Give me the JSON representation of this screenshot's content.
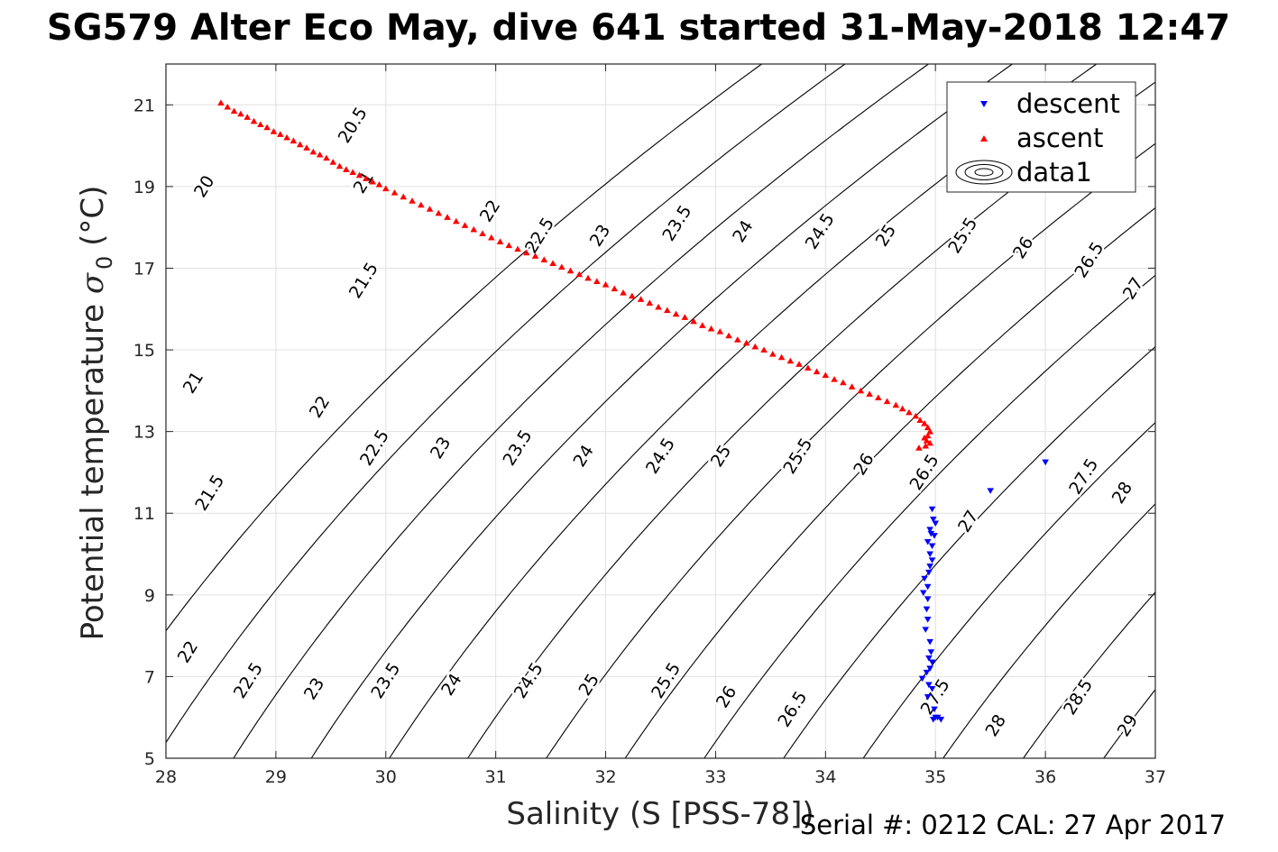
{
  "title": "SG579 Alter Eco May, dive 641 started 31-May-2018 12:47",
  "footer": "Serial #: 0212  CAL: 27 Apr 2017",
  "chart_data": {
    "type": "scatter",
    "xlabel": "Salinity (S [PSS-78])",
    "ylabel": "Potential temperature σ 0 (°C)",
    "ylabel_main": "Potential temperature ",
    "ylabel_sigma": "σ",
    "ylabel_sub": "0",
    "ylabel_unit": " (°C)",
    "xlim": [
      28,
      37
    ],
    "ylim": [
      5,
      22
    ],
    "xticks": [
      "28",
      "29",
      "30",
      "31",
      "32",
      "33",
      "34",
      "35",
      "36",
      "37"
    ],
    "yticks": [
      "5",
      "7",
      "9",
      "11",
      "13",
      "15",
      "17",
      "19",
      "21"
    ],
    "grid": true,
    "legend_position": "top-right",
    "legend": [
      "descent",
      "ascent",
      "data1"
    ],
    "colors": {
      "descent": "#0000ff",
      "ascent": "#ff0000",
      "contour": "#000000",
      "grid": "#e0e0e0"
    },
    "contours": {
      "levels": [
        "20",
        "20.5",
        "21",
        "21.5",
        "22",
        "22.5",
        "23",
        "23.5",
        "24",
        "24.5",
        "25",
        "25.5",
        "26",
        "26.5",
        "27",
        "27.5",
        "28",
        "28.5",
        "29"
      ],
      "labels": [
        {
          "text": "20.5",
          "s": 29.7,
          "t": 20.5
        },
        {
          "text": "20",
          "s": 28.35,
          "t": 19.0
        },
        {
          "text": "21",
          "s": 29.8,
          "t": 19.1
        },
        {
          "text": "21.5",
          "s": 29.8,
          "t": 16.7
        },
        {
          "text": "22",
          "s": 30.95,
          "t": 18.4
        },
        {
          "text": "22.5",
          "s": 31.4,
          "t": 17.8
        },
        {
          "text": "23",
          "s": 31.95,
          "t": 17.8
        },
        {
          "text": "23.5",
          "s": 32.65,
          "t": 18.1
        },
        {
          "text": "24",
          "s": 33.25,
          "t": 17.9
        },
        {
          "text": "24.5",
          "s": 33.95,
          "t": 17.9
        },
        {
          "text": "25",
          "s": 34.55,
          "t": 17.8
        },
        {
          "text": "25.5",
          "s": 35.25,
          "t": 17.8
        },
        {
          "text": "26",
          "s": 35.8,
          "t": 17.5
        },
        {
          "text": "26.5",
          "s": 36.4,
          "t": 17.2
        },
        {
          "text": "27",
          "s": 36.8,
          "t": 16.5
        },
        {
          "text": "21",
          "s": 28.25,
          "t": 14.2
        },
        {
          "text": "22",
          "s": 29.4,
          "t": 13.6
        },
        {
          "text": "22.5",
          "s": 29.9,
          "t": 12.6
        },
        {
          "text": "23",
          "s": 30.5,
          "t": 12.6
        },
        {
          "text": "23.5",
          "s": 31.2,
          "t": 12.6
        },
        {
          "text": "24",
          "s": 31.8,
          "t": 12.4
        },
        {
          "text": "24.5",
          "s": 32.5,
          "t": 12.4
        },
        {
          "text": "25",
          "s": 33.05,
          "t": 12.4
        },
        {
          "text": "25.5",
          "s": 33.75,
          "t": 12.4
        },
        {
          "text": "26",
          "s": 34.35,
          "t": 12.2
        },
        {
          "text": "26.5",
          "s": 34.9,
          "t": 12.0
        },
        {
          "text": "27",
          "s": 35.3,
          "t": 10.8
        },
        {
          "text": "27.5",
          "s": 36.35,
          "t": 11.9
        },
        {
          "text": "28",
          "s": 36.7,
          "t": 11.5
        },
        {
          "text": "21.5",
          "s": 28.4,
          "t": 11.5
        },
        {
          "text": "22",
          "s": 28.2,
          "t": 7.6
        },
        {
          "text": "22.5",
          "s": 28.75,
          "t": 6.9
        },
        {
          "text": "23",
          "s": 29.35,
          "t": 6.7
        },
        {
          "text": "23.5",
          "s": 30.0,
          "t": 6.9
        },
        {
          "text": "24",
          "s": 30.6,
          "t": 6.8
        },
        {
          "text": "24.5",
          "s": 31.3,
          "t": 6.9
        },
        {
          "text": "25",
          "s": 31.85,
          "t": 6.8
        },
        {
          "text": "25.5",
          "s": 32.55,
          "t": 6.9
        },
        {
          "text": "26",
          "s": 33.1,
          "t": 6.5
        },
        {
          "text": "26.5",
          "s": 33.7,
          "t": 6.2
        },
        {
          "text": "27.5",
          "s": 35.0,
          "t": 6.5
        },
        {
          "text": "28",
          "s": 35.55,
          "t": 5.8
        },
        {
          "text": "28.5",
          "s": 36.3,
          "t": 6.5
        },
        {
          "text": "29",
          "s": 36.75,
          "t": 5.8
        }
      ]
    },
    "series": [
      {
        "name": "descent",
        "marker": "triangle-down",
        "points": [
          [
            36.0,
            12.25
          ],
          [
            35.5,
            11.55
          ],
          [
            34.97,
            11.1
          ],
          [
            34.98,
            10.85
          ],
          [
            35.0,
            10.75
          ],
          [
            34.95,
            10.6
          ],
          [
            34.96,
            10.5
          ],
          [
            34.99,
            10.45
          ],
          [
            34.93,
            10.3
          ],
          [
            34.97,
            10.2
          ],
          [
            34.95,
            10.0
          ],
          [
            34.97,
            9.85
          ],
          [
            34.95,
            9.7
          ],
          [
            34.94,
            9.55
          ],
          [
            34.9,
            9.4
          ],
          [
            34.93,
            9.2
          ],
          [
            34.89,
            9.05
          ],
          [
            34.93,
            8.9
          ],
          [
            34.92,
            8.65
          ],
          [
            34.93,
            8.4
          ],
          [
            34.91,
            8.15
          ],
          [
            34.95,
            7.85
          ],
          [
            34.96,
            7.6
          ],
          [
            34.94,
            7.45
          ],
          [
            34.97,
            7.35
          ],
          [
            34.95,
            7.2
          ],
          [
            34.92,
            7.1
          ],
          [
            34.88,
            6.95
          ],
          [
            34.94,
            6.8
          ],
          [
            34.97,
            6.7
          ],
          [
            34.93,
            6.5
          ],
          [
            34.99,
            6.2
          ],
          [
            35.0,
            6.0
          ],
          [
            35.05,
            5.95
          ],
          [
            34.98,
            5.95
          ],
          [
            35.02,
            6.0
          ]
        ]
      },
      {
        "name": "ascent",
        "marker": "triangle-up",
        "points": [
          [
            28.5,
            21.05
          ],
          [
            28.56,
            20.95
          ],
          [
            28.62,
            20.85
          ],
          [
            28.68,
            20.78
          ],
          [
            28.74,
            20.7
          ],
          [
            28.8,
            20.6
          ],
          [
            28.86,
            20.52
          ],
          [
            28.92,
            20.45
          ],
          [
            28.98,
            20.35
          ],
          [
            29.04,
            20.28
          ],
          [
            29.1,
            20.2
          ],
          [
            29.16,
            20.12
          ],
          [
            29.22,
            20.03
          ],
          [
            29.28,
            19.95
          ],
          [
            29.34,
            19.85
          ],
          [
            29.4,
            19.78
          ],
          [
            29.46,
            19.7
          ],
          [
            29.52,
            19.6
          ],
          [
            29.58,
            19.5
          ],
          [
            29.64,
            19.42
          ],
          [
            29.7,
            19.35
          ],
          [
            29.76,
            19.28
          ],
          [
            29.82,
            19.2
          ],
          [
            29.88,
            19.12
          ],
          [
            29.94,
            19.05
          ],
          [
            30.0,
            18.95
          ],
          [
            30.08,
            18.85
          ],
          [
            30.16,
            18.75
          ],
          [
            30.24,
            18.65
          ],
          [
            30.32,
            18.55
          ],
          [
            30.4,
            18.45
          ],
          [
            30.48,
            18.35
          ],
          [
            30.56,
            18.25
          ],
          [
            30.64,
            18.15
          ],
          [
            30.72,
            18.05
          ],
          [
            30.8,
            17.95
          ],
          [
            30.88,
            17.85
          ],
          [
            30.96,
            17.75
          ],
          [
            31.04,
            17.65
          ],
          [
            31.12,
            17.56
          ],
          [
            31.2,
            17.47
          ],
          [
            31.28,
            17.38
          ],
          [
            31.36,
            17.3
          ],
          [
            31.44,
            17.21
          ],
          [
            31.52,
            17.12
          ],
          [
            31.6,
            17.03
          ],
          [
            31.68,
            16.94
          ],
          [
            31.76,
            16.85
          ],
          [
            31.84,
            16.76
          ],
          [
            31.92,
            16.68
          ],
          [
            32.0,
            16.6
          ],
          [
            32.08,
            16.5
          ],
          [
            32.16,
            16.4
          ],
          [
            32.24,
            16.32
          ],
          [
            32.32,
            16.24
          ],
          [
            32.4,
            16.15
          ],
          [
            32.48,
            16.05
          ],
          [
            32.56,
            15.97
          ],
          [
            32.64,
            15.88
          ],
          [
            32.72,
            15.8
          ],
          [
            32.8,
            15.7
          ],
          [
            32.88,
            15.6
          ],
          [
            32.96,
            15.52
          ],
          [
            33.04,
            15.45
          ],
          [
            33.12,
            15.35
          ],
          [
            33.2,
            15.25
          ],
          [
            33.28,
            15.17
          ],
          [
            33.36,
            15.08
          ],
          [
            33.44,
            15.0
          ],
          [
            33.52,
            14.9
          ],
          [
            33.6,
            14.82
          ],
          [
            33.68,
            14.73
          ],
          [
            33.76,
            14.65
          ],
          [
            33.84,
            14.56
          ],
          [
            33.92,
            14.47
          ],
          [
            34.0,
            14.38
          ],
          [
            34.08,
            14.28
          ],
          [
            34.16,
            14.2
          ],
          [
            34.24,
            14.1
          ],
          [
            34.32,
            14.0
          ],
          [
            34.4,
            13.92
          ],
          [
            34.48,
            13.83
          ],
          [
            34.56,
            13.74
          ],
          [
            34.64,
            13.65
          ],
          [
            34.7,
            13.56
          ],
          [
            34.76,
            13.47
          ],
          [
            34.82,
            13.38
          ],
          [
            34.86,
            13.28
          ],
          [
            34.9,
            13.2
          ],
          [
            34.93,
            13.1
          ],
          [
            34.95,
            13.0
          ],
          [
            34.93,
            12.9
          ],
          [
            34.9,
            12.85
          ],
          [
            34.92,
            12.78
          ],
          [
            34.95,
            12.72
          ],
          [
            34.91,
            12.65
          ],
          [
            34.85,
            12.6
          ]
        ]
      }
    ]
  }
}
